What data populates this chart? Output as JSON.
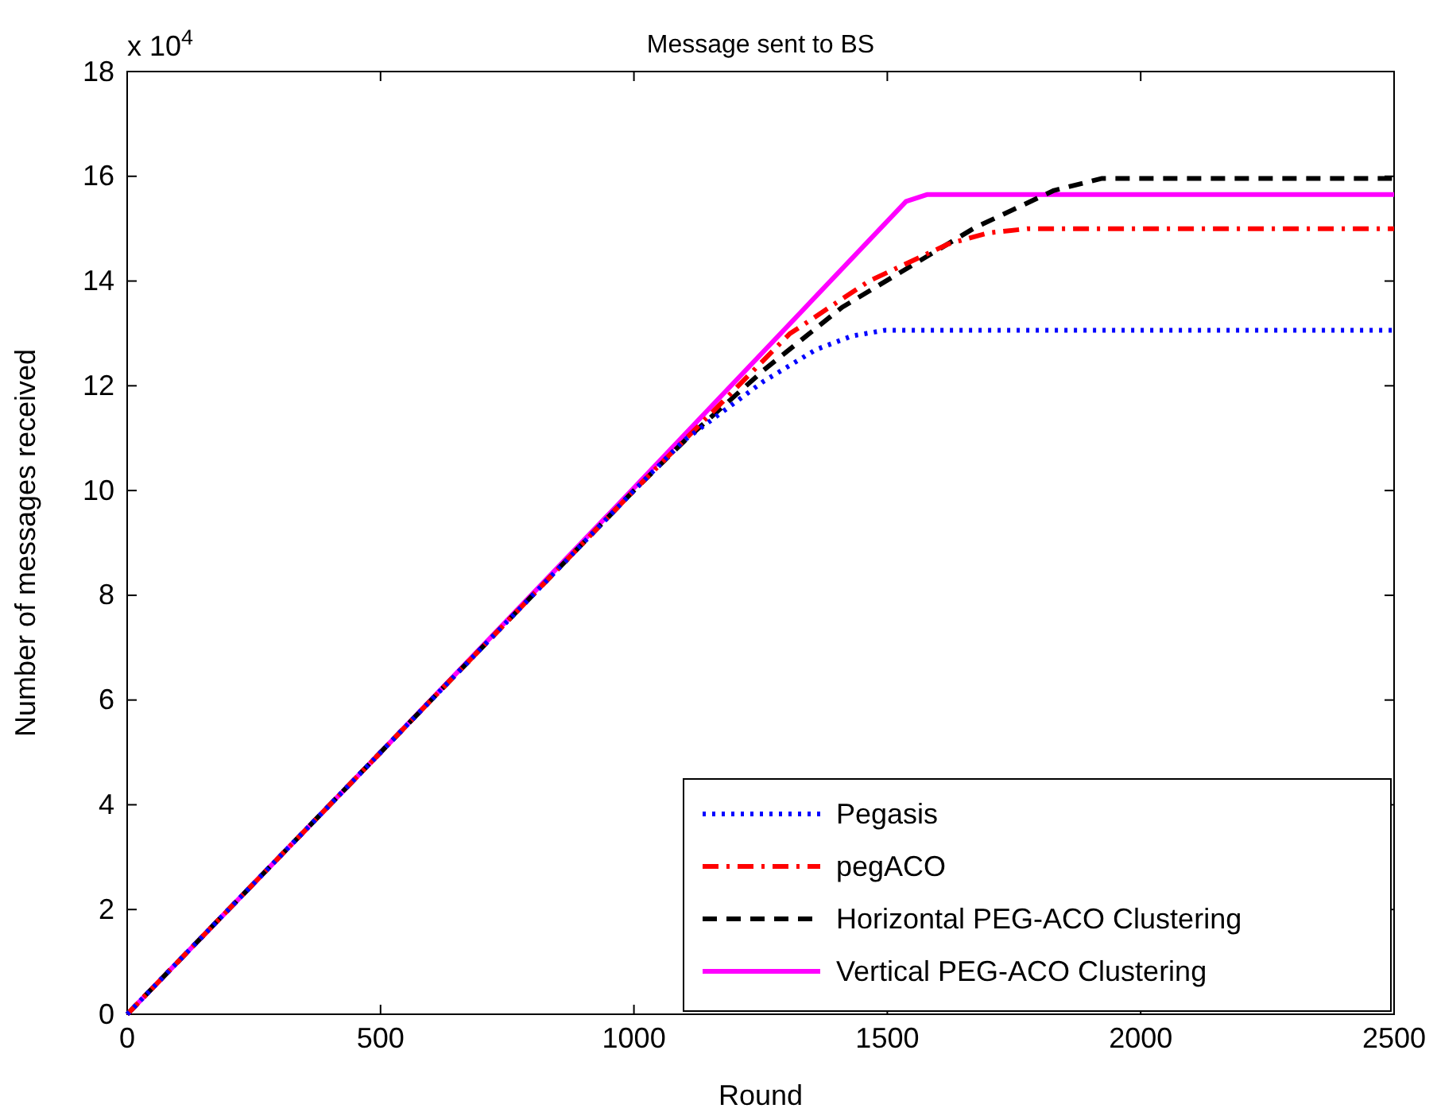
{
  "chart_data": {
    "type": "line",
    "title": "Message sent to BS",
    "xlabel": "Round",
    "ylabel": "Number of messages received",
    "annotations": [
      "x 10$^{4}$"
    ],
    "xlim": [
      0,
      2500
    ],
    "xticks": [
      0,
      500,
      1000,
      1500,
      2000,
      2500
    ],
    "ylim": [
      0,
      18
    ],
    "yticks": [
      0,
      2,
      4,
      6,
      8,
      10,
      12,
      14,
      16,
      18
    ],
    "legend": "bottom right",
    "grid": false,
    "series": [
      {
        "name": "Pegasis",
        "color": "#0000ff",
        "line_style": "dotted",
        "x": [
          0,
          500,
          1000,
          1098,
          1255,
          1359,
          1430,
          1495,
          2500
        ],
        "values": [
          0,
          5,
          10,
          10.95,
          12.08,
          12.69,
          12.95,
          13.06,
          13.06
        ]
      },
      {
        "name": "pegACO",
        "color": "#ff0000",
        "line_style": "dashdot",
        "x": [
          0,
          500,
          1000,
          1150,
          1307,
          1464,
          1621,
          1700,
          1778,
          2500
        ],
        "values": [
          0,
          5,
          10,
          11.45,
          12.99,
          14.0,
          14.71,
          14.92,
          15.0,
          15.0
        ]
      },
      {
        "name": "Horizontal PEG-ACO Clustering",
        "color": "#000000",
        "line_style": "dashed",
        "x": [
          0,
          500,
          1000,
          1100,
          1255,
          1411,
          1568,
          1673,
          1829,
          1924,
          2500
        ],
        "values": [
          0,
          5,
          10,
          10.95,
          12.29,
          13.5,
          14.41,
          15.02,
          15.73,
          15.96,
          15.96
        ]
      },
      {
        "name": "Vertical PEG-ACO Clustering",
        "color": "#ff00ff",
        "line_style": "solid",
        "x": [
          0,
          500,
          1000,
          1537,
          1578,
          2500
        ],
        "values": [
          0,
          5,
          10.05,
          15.52,
          15.65,
          15.65
        ]
      }
    ]
  }
}
